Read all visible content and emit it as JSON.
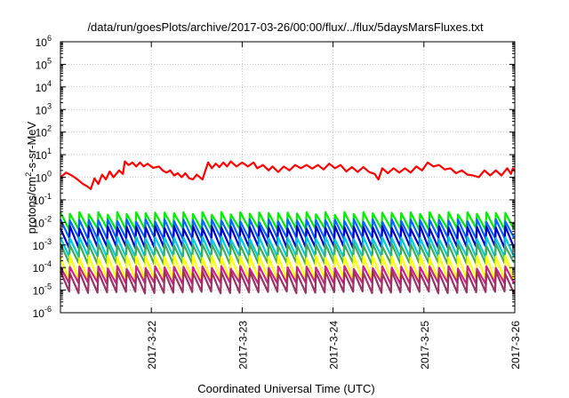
{
  "chart_data": {
    "type": "line",
    "title": "/data/run/goesPlots/archive/2017-03-26/00:00/flux/../flux/5daysMarsFluxes.txt",
    "xlabel": "Coordinated Universal Time (UTC)",
    "ylabel": {
      "prefix": "protons/cm",
      "superscript": "2",
      "suffix": "-s-sr-MeV"
    },
    "y_scale": "log",
    "ylim": [
      1e-06,
      1000000.0
    ],
    "xlim": [
      "2017-03-21T00:00",
      "2017-03-26T00:00"
    ],
    "grid": true,
    "y_ticks": [
      {
        "value": 1e-06,
        "base": "10",
        "exp": "-6"
      },
      {
        "value": 1e-05,
        "base": "10",
        "exp": "-5"
      },
      {
        "value": 0.0001,
        "base": "10",
        "exp": "-4"
      },
      {
        "value": 0.001,
        "base": "10",
        "exp": "-3"
      },
      {
        "value": 0.01,
        "base": "10",
        "exp": "-2"
      },
      {
        "value": 0.1,
        "base": "10",
        "exp": "-1"
      },
      {
        "value": 1,
        "base": "10",
        "exp": "0"
      },
      {
        "value": 10,
        "base": "10",
        "exp": "1"
      },
      {
        "value": 100,
        "base": "10",
        "exp": "2"
      },
      {
        "value": 1000,
        "base": "10",
        "exp": "3"
      },
      {
        "value": 10000,
        "base": "10",
        "exp": "4"
      },
      {
        "value": 100000,
        "base": "10",
        "exp": "5"
      },
      {
        "value": 1000000,
        "base": "10",
        "exp": "6"
      }
    ],
    "x_ticks": [
      {
        "label": "2017-3-22",
        "x": "2017-03-22T00:00"
      },
      {
        "label": "2017-3-23",
        "x": "2017-03-23T00:00"
      },
      {
        "label": "2017-3-24",
        "x": "2017-03-24T00:00"
      },
      {
        "label": "2017-3-25",
        "x": "2017-03-25T00:00"
      },
      {
        "label": "2017-3-26",
        "x": "2017-03-26T00:00"
      }
    ],
    "series": [
      {
        "color": "#ff0000",
        "points": [
          [
            "2017-03-21T00:00",
            1.0
          ],
          [
            "2017-03-21T01:30",
            1.6
          ],
          [
            "2017-03-21T03:00",
            1.2
          ],
          [
            "2017-03-21T04:30",
            0.8
          ],
          [
            "2017-03-21T06:00",
            0.5
          ],
          [
            "2017-03-21T07:00",
            0.4
          ],
          [
            "2017-03-21T08:00",
            0.3
          ],
          [
            "2017-03-21T09:00",
            0.9
          ],
          [
            "2017-03-21T10:00",
            0.5
          ],
          [
            "2017-03-21T11:00",
            1.3
          ],
          [
            "2017-03-21T12:00",
            0.8
          ],
          [
            "2017-03-21T13:00",
            1.8
          ],
          [
            "2017-03-21T14:00",
            1.0
          ],
          [
            "2017-03-21T15:30",
            2.0
          ],
          [
            "2017-03-21T16:30",
            1.4
          ],
          [
            "2017-03-21T17:00",
            5.0
          ],
          [
            "2017-03-21T18:00",
            3.5
          ],
          [
            "2017-03-21T19:00",
            4.5
          ],
          [
            "2017-03-21T20:00",
            3.0
          ],
          [
            "2017-03-21T21:00",
            4.5
          ],
          [
            "2017-03-21T22:00",
            3.0
          ],
          [
            "2017-03-21T23:00",
            4.0
          ],
          [
            "2017-03-22T00:30",
            2.6
          ],
          [
            "2017-03-22T02:00",
            3.0
          ],
          [
            "2017-03-22T03:00",
            2.0
          ],
          [
            "2017-03-22T04:00",
            1.6
          ],
          [
            "2017-03-22T05:00",
            2.0
          ],
          [
            "2017-03-22T06:00",
            1.2
          ],
          [
            "2017-03-22T07:00",
            1.5
          ],
          [
            "2017-03-22T08:00",
            1.0
          ],
          [
            "2017-03-22T09:00",
            1.5
          ],
          [
            "2017-03-22T10:00",
            0.9
          ],
          [
            "2017-03-22T11:00",
            0.8
          ],
          [
            "2017-03-22T12:00",
            1.3
          ],
          [
            "2017-03-22T13:30",
            0.8
          ],
          [
            "2017-03-22T15:00",
            4.5
          ],
          [
            "2017-03-22T16:00",
            2.5
          ],
          [
            "2017-03-22T17:00",
            4.0
          ],
          [
            "2017-03-22T18:00",
            2.8
          ],
          [
            "2017-03-22T19:00",
            4.5
          ],
          [
            "2017-03-22T20:00",
            3.0
          ],
          [
            "2017-03-22T21:00",
            5.0
          ],
          [
            "2017-03-22T22:30",
            3.0
          ],
          [
            "2017-03-23T00:00",
            4.5
          ],
          [
            "2017-03-23T01:30",
            3.0
          ],
          [
            "2017-03-23T03:00",
            4.5
          ],
          [
            "2017-03-23T04:00",
            2.5
          ],
          [
            "2017-03-23T05:30",
            3.5
          ],
          [
            "2017-03-23T07:00",
            2.0
          ],
          [
            "2017-03-23T08:00",
            3.0
          ],
          [
            "2017-03-23T09:30",
            1.7
          ],
          [
            "2017-03-23T11:00",
            3.0
          ],
          [
            "2017-03-23T12:30",
            2.0
          ],
          [
            "2017-03-23T14:00",
            3.5
          ],
          [
            "2017-03-23T15:30",
            2.5
          ],
          [
            "2017-03-23T17:00",
            3.5
          ],
          [
            "2017-03-23T18:30",
            2.4
          ],
          [
            "2017-03-23T20:00",
            3.5
          ],
          [
            "2017-03-23T21:30",
            2.2
          ],
          [
            "2017-03-23T23:00",
            4.0
          ],
          [
            "2017-03-24T00:30",
            2.5
          ],
          [
            "2017-03-24T02:00",
            3.5
          ],
          [
            "2017-03-24T03:30",
            1.8
          ],
          [
            "2017-03-24T05:00",
            2.8
          ],
          [
            "2017-03-24T06:30",
            1.7
          ],
          [
            "2017-03-24T08:00",
            2.8
          ],
          [
            "2017-03-24T09:30",
            1.7
          ],
          [
            "2017-03-24T11:00",
            1.4
          ],
          [
            "2017-03-24T12:00",
            0.8
          ],
          [
            "2017-03-24T13:00",
            2.5
          ],
          [
            "2017-03-24T14:30",
            1.5
          ],
          [
            "2017-03-24T16:00",
            2.5
          ],
          [
            "2017-03-24T17:30",
            1.6
          ],
          [
            "2017-03-24T19:00",
            2.5
          ],
          [
            "2017-03-24T20:30",
            1.6
          ],
          [
            "2017-03-24T22:00",
            3.0
          ],
          [
            "2017-03-24T23:30",
            2.0
          ],
          [
            "2017-03-25T01:00",
            4.5
          ],
          [
            "2017-03-25T02:30",
            3.0
          ],
          [
            "2017-03-25T04:00",
            3.5
          ],
          [
            "2017-03-25T05:30",
            2.2
          ],
          [
            "2017-03-25T07:00",
            2.5
          ],
          [
            "2017-03-25T08:30",
            1.5
          ],
          [
            "2017-03-25T10:00",
            2.0
          ],
          [
            "2017-03-25T11:30",
            1.3
          ],
          [
            "2017-03-25T13:00",
            1.2
          ],
          [
            "2017-03-25T14:30",
            1.0
          ],
          [
            "2017-03-25T16:00",
            2.0
          ],
          [
            "2017-03-25T17:30",
            1.2
          ],
          [
            "2017-03-25T19:00",
            2.0
          ],
          [
            "2017-03-25T20:30",
            1.2
          ],
          [
            "2017-03-25T22:00",
            2.5
          ],
          [
            "2017-03-25T23:00",
            1.4
          ],
          [
            "2017-03-25T23:30",
            2.5
          ],
          [
            "2017-03-26T00:00",
            1.8
          ]
        ]
      },
      {
        "color": "#00ee00",
        "sawtooth": {
          "low": 0.005,
          "high": 0.025
        }
      },
      {
        "color": "#0066ff",
        "sawtooth": {
          "low": 0.002,
          "high": 0.012
        }
      },
      {
        "color": "#0000cc",
        "sawtooth": {
          "low": 0.0008,
          "high": 0.006
        }
      },
      {
        "color": "#00ccdd",
        "sawtooth": {
          "low": 0.0003,
          "high": 0.002
        }
      },
      {
        "color": "#44aa55",
        "sawtooth": {
          "low": 0.00015,
          "high": 0.001
        }
      },
      {
        "color": "#ffff00",
        "sawtooth": {
          "low": 3e-05,
          "high": 0.0003
        }
      },
      {
        "color": "#cc2288",
        "sawtooth": {
          "low": 2e-05,
          "high": 0.0001
        }
      },
      {
        "color": "#993366",
        "sawtooth": {
          "low": 8e-06,
          "high": 6e-05
        }
      }
    ],
    "sawtooth_cycles": 48
  }
}
